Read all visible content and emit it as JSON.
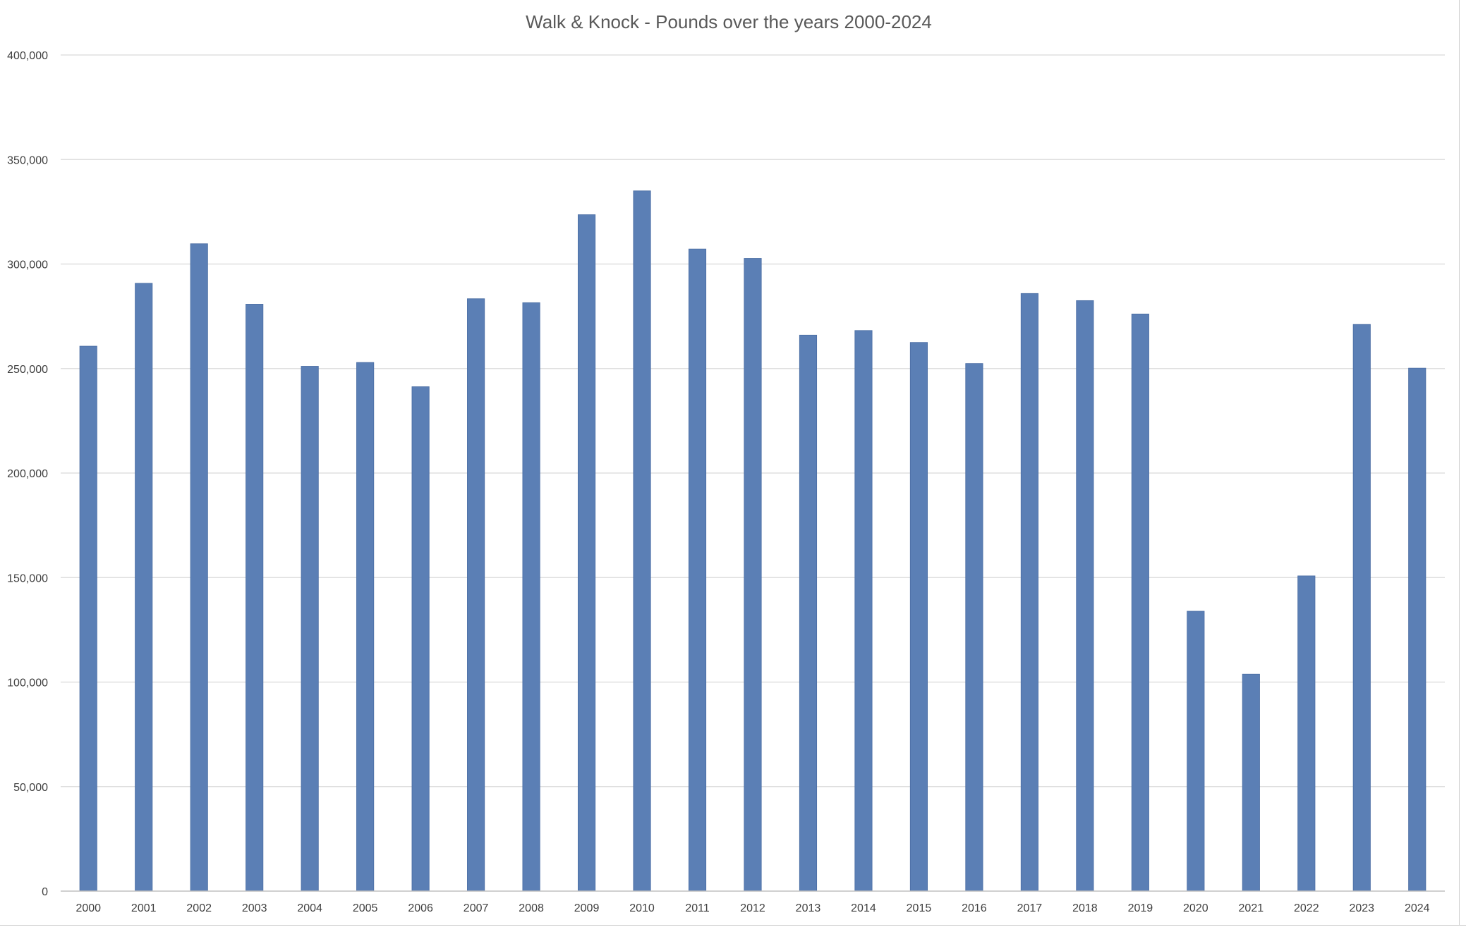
{
  "chart_data": {
    "type": "bar",
    "title": "Walk & Knock - Pounds over the years 2000-2024",
    "xlabel": "",
    "ylabel": "",
    "ylim": [
      0,
      400000
    ],
    "y_ticks": [
      "0",
      "50,000",
      "100,000",
      "150,000",
      "200,000",
      "250,000",
      "300,000",
      "350,000",
      "400,000"
    ],
    "grid": true,
    "legend": "none",
    "categories": [
      "2000",
      "2001",
      "2002",
      "2003",
      "2004",
      "2005",
      "2006",
      "2007",
      "2008",
      "2009",
      "2010",
      "2011",
      "2012",
      "2013",
      "2014",
      "2015",
      "2016",
      "2017",
      "2018",
      "2019",
      "2020",
      "2021",
      "2022",
      "2023",
      "2024"
    ],
    "values": [
      260700,
      290800,
      309700,
      280800,
      251100,
      252900,
      241300,
      283400,
      281500,
      323600,
      335000,
      307200,
      302700,
      266000,
      268200,
      262500,
      252400,
      285900,
      282500,
      276100,
      133900,
      103800,
      150800,
      271100,
      250200
    ],
    "colors": {
      "bar": "#5B7FB5",
      "grid": "#d9d9d9",
      "axis": "#bfbfbf",
      "text": "#404040",
      "title": "#595959"
    }
  }
}
